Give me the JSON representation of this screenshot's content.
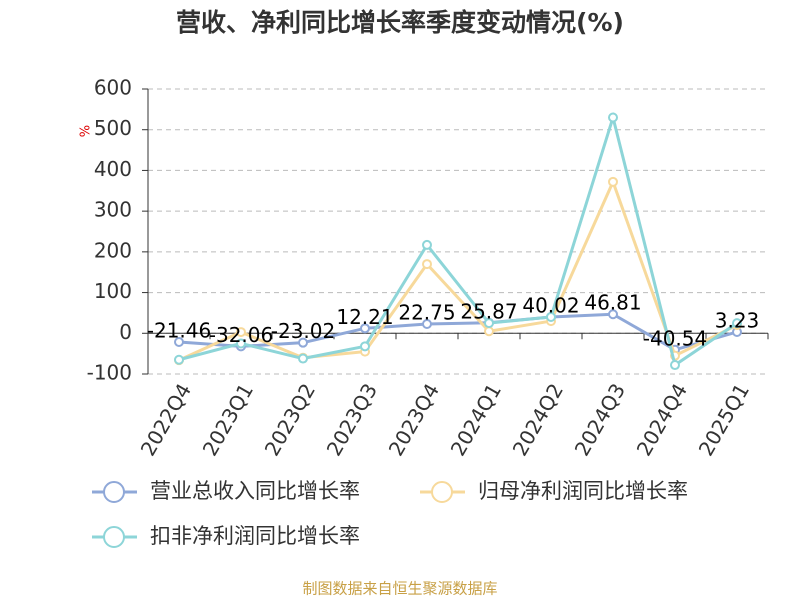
{
  "chart_data": {
    "type": "line",
    "title": "营收、净利同比增长率季度变动情况(%)",
    "y_unit": "%",
    "categories": [
      "2022Q4",
      "2023Q1",
      "2023Q2",
      "2023Q3",
      "2023Q4",
      "2024Q1",
      "2024Q2",
      "2024Q3",
      "2024Q4",
      "2025Q1"
    ],
    "series": [
      {
        "name": "营业总收入同比增长率",
        "color": "#8fa8d8",
        "values": [
          -21.46,
          -32.06,
          -23.02,
          12.21,
          22.75,
          25.87,
          40.02,
          46.81,
          -40.54,
          3.23
        ],
        "data_labels": true
      },
      {
        "name": "归母净利润同比增长率",
        "color": "#f7d99b",
        "values": [
          -66,
          3,
          -60,
          -45,
          170,
          5,
          30,
          372,
          -55,
          20
        ]
      },
      {
        "name": "扣非净利润同比增长率",
        "color": "#8dd5d8",
        "values": [
          -65,
          -25,
          -62,
          -32,
          217,
          25,
          40,
          530,
          -78,
          25
        ]
      }
    ],
    "ylim": [
      -100,
      600
    ],
    "yticks": [
      -100,
      0,
      100,
      200,
      300,
      400,
      500,
      600
    ],
    "grid": true,
    "source": "制图数据来自恒生聚源数据库"
  }
}
